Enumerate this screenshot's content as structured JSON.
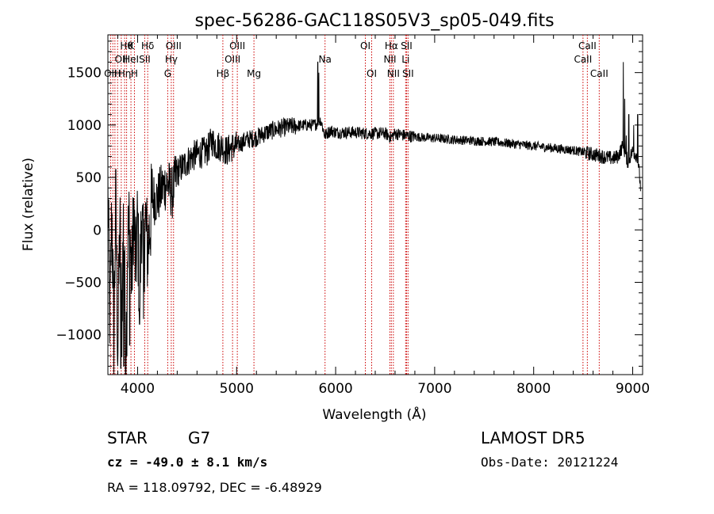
{
  "chart_data": {
    "type": "line",
    "title": "spec-56286-GAC118S05V3_sp05-049.fits",
    "xlabel": "Wavelength (Å)",
    "ylabel": "Flux (relative)",
    "xlim": [
      3700,
      9100
    ],
    "ylim": [
      -1380,
      1860
    ],
    "x_ticks": [
      4000,
      5000,
      6000,
      7000,
      8000,
      9000
    ],
    "y_ticks": [
      -1000,
      -500,
      0,
      500,
      1000,
      1500
    ],
    "grid": false,
    "line_color": "#000000",
    "marker_color": "#cc0000",
    "anchors": [
      [
        3700,
        400
      ],
      [
        3720,
        -900
      ],
      [
        3740,
        200
      ],
      [
        3760,
        -1000
      ],
      [
        3780,
        300
      ],
      [
        3800,
        -1200
      ],
      [
        3820,
        100
      ],
      [
        3840,
        -900
      ],
      [
        3860,
        300
      ],
      [
        3880,
        -1300
      ],
      [
        3900,
        -100
      ],
      [
        3920,
        100
      ],
      [
        3940,
        -500
      ],
      [
        3960,
        200
      ],
      [
        3980,
        -400
      ],
      [
        4000,
        100
      ],
      [
        4020,
        -700
      ],
      [
        4040,
        200
      ],
      [
        4060,
        -300
      ],
      [
        4080,
        100
      ],
      [
        4100,
        -200
      ],
      [
        4150,
        300
      ],
      [
        4200,
        300
      ],
      [
        4250,
        400
      ],
      [
        4300,
        450
      ],
      [
        4350,
        350
      ],
      [
        4400,
        550
      ],
      [
        4450,
        600
      ],
      [
        4500,
        650
      ],
      [
        4550,
        700
      ],
      [
        4600,
        720
      ],
      [
        4700,
        750
      ],
      [
        4750,
        850
      ],
      [
        4800,
        800
      ],
      [
        4850,
        800
      ],
      [
        4900,
        750
      ],
      [
        4950,
        790
      ],
      [
        5000,
        800
      ],
      [
        5100,
        860
      ],
      [
        5200,
        880
      ],
      [
        5300,
        930
      ],
      [
        5400,
        960
      ],
      [
        5500,
        980
      ],
      [
        5600,
        990
      ],
      [
        5700,
        1000
      ],
      [
        5780,
        1000
      ],
      [
        5820,
        1020
      ],
      [
        5850,
        1050
      ],
      [
        5890,
        900
      ],
      [
        5950,
        950
      ],
      [
        6000,
        930
      ],
      [
        6100,
        930
      ],
      [
        6200,
        930
      ],
      [
        6300,
        920
      ],
      [
        6400,
        920
      ],
      [
        6500,
        920
      ],
      [
        6560,
        880
      ],
      [
        6600,
        920
      ],
      [
        6700,
        900
      ],
      [
        6800,
        890
      ],
      [
        6900,
        880
      ],
      [
        7000,
        875
      ],
      [
        7200,
        860
      ],
      [
        7400,
        850
      ],
      [
        7600,
        840
      ],
      [
        7800,
        820
      ],
      [
        8000,
        800
      ],
      [
        8200,
        780
      ],
      [
        8400,
        760
      ],
      [
        8600,
        720
      ],
      [
        8700,
        700
      ],
      [
        8800,
        680
      ],
      [
        8850,
        700
      ],
      [
        8900,
        800
      ],
      [
        8950,
        650
      ],
      [
        9000,
        750
      ],
      [
        9050,
        700
      ],
      [
        9080,
        400
      ]
    ],
    "spikes": [
      [
        5820,
        1600
      ],
      [
        5830,
        1500
      ],
      [
        8905,
        1600
      ],
      [
        8920,
        1250
      ],
      [
        8935,
        900
      ],
      [
        8960,
        1100
      ],
      [
        9010,
        1000
      ],
      [
        9050,
        1100
      ],
      [
        3830,
        -1320
      ],
      [
        3860,
        -1300
      ],
      [
        3890,
        -1200
      ],
      [
        3920,
        -1100
      ],
      [
        4060,
        -850
      ],
      [
        4020,
        -900
      ]
    ],
    "lines": [
      {
        "wl": 3727,
        "labels": [
          {
            "row": 3,
            "text": "OII"
          }
        ]
      },
      {
        "wl": 3750,
        "labels": []
      },
      {
        "wl": 3771,
        "labels": []
      },
      {
        "wl": 3798,
        "labels": [
          {
            "row": 3,
            "text": "H"
          }
        ]
      },
      {
        "wl": 3835,
        "labels": [
          {
            "row": 2,
            "text": "OII"
          }
        ]
      },
      {
        "wl": 3869,
        "labels": [
          {
            "row": 3,
            "text": "Hη"
          }
        ]
      },
      {
        "wl": 3889,
        "labels": [
          {
            "row": 1,
            "text": "Hθ"
          }
        ]
      },
      {
        "wl": 3933,
        "labels": [
          {
            "row": 1,
            "text": "K"
          },
          {
            "row": 2,
            "text": "HeI"
          }
        ]
      },
      {
        "wl": 3968,
        "labels": [
          {
            "row": 3,
            "text": "H"
          }
        ]
      },
      {
        "wl": 4072,
        "labels": [
          {
            "row": 2,
            "text": "SII"
          }
        ]
      },
      {
        "wl": 4102,
        "labels": [
          {
            "row": 1,
            "text": "Hδ"
          }
        ]
      },
      {
        "wl": 4304,
        "labels": [
          {
            "row": 3,
            "text": "G"
          }
        ]
      },
      {
        "wl": 4340,
        "labels": [
          {
            "row": 2,
            "text": "Hγ"
          }
        ]
      },
      {
        "wl": 4363,
        "labels": [
          {
            "row": 1,
            "text": "OIII"
          }
        ]
      },
      {
        "wl": 4861,
        "labels": [
          {
            "row": 3,
            "text": "Hβ"
          }
        ]
      },
      {
        "wl": 4959,
        "labels": [
          {
            "row": 2,
            "text": "OIII"
          }
        ]
      },
      {
        "wl": 5007,
        "labels": [
          {
            "row": 1,
            "text": "OIII"
          }
        ]
      },
      {
        "wl": 5175,
        "labels": [
          {
            "row": 3,
            "text": "Mg"
          }
        ]
      },
      {
        "wl": 5893,
        "labels": [
          {
            "row": 2,
            "text": "Na"
          }
        ]
      },
      {
        "wl": 6300,
        "labels": [
          {
            "row": 1,
            "text": "OI"
          }
        ]
      },
      {
        "wl": 6364,
        "labels": [
          {
            "row": 3,
            "text": "OI"
          }
        ]
      },
      {
        "wl": 6548,
        "labels": [
          {
            "row": 2,
            "text": "NII"
          }
        ]
      },
      {
        "wl": 6563,
        "labels": [
          {
            "row": 1,
            "text": "Hα"
          }
        ]
      },
      {
        "wl": 6583,
        "labels": [
          {
            "row": 3,
            "text": "NII"
          }
        ]
      },
      {
        "wl": 6707,
        "labels": [
          {
            "row": 2,
            "text": "Li"
          }
        ]
      },
      {
        "wl": 6716,
        "labels": [
          {
            "row": 1,
            "text": "SII"
          }
        ]
      },
      {
        "wl": 6731,
        "labels": [
          {
            "row": 3,
            "text": "SII"
          }
        ]
      },
      {
        "wl": 8498,
        "labels": [
          {
            "row": 2,
            "text": "CaII"
          }
        ]
      },
      {
        "wl": 8542,
        "labels": [
          {
            "row": 1,
            "text": "CaII"
          }
        ]
      },
      {
        "wl": 8662,
        "labels": [
          {
            "row": 3,
            "text": "CaII"
          }
        ]
      }
    ]
  },
  "info": {
    "class": "STAR",
    "subclass": "G7",
    "survey": "LAMOST DR5",
    "cz": "cz = -49.0 ± 8.1 km/s",
    "obs_date": "Obs-Date: 20121224",
    "coords": "RA = 118.09792, DEC =  -6.48929"
  }
}
